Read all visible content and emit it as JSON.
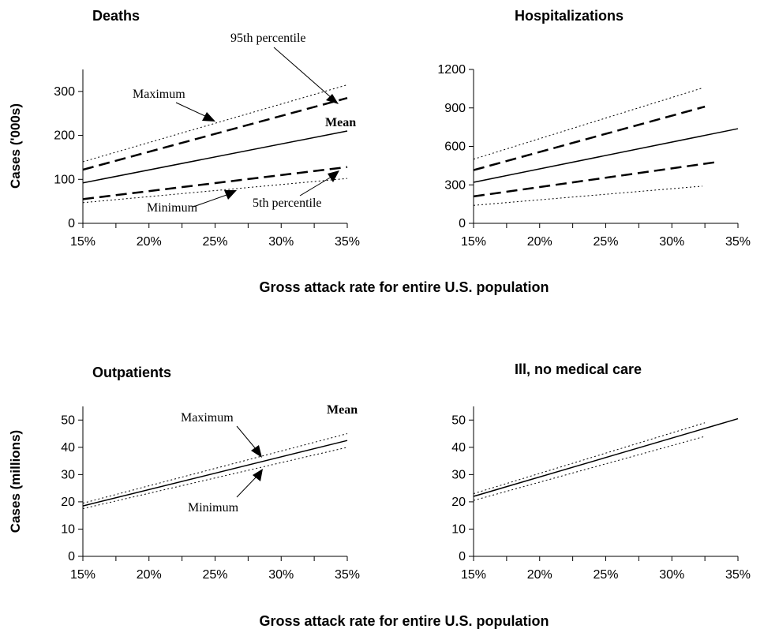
{
  "chart_data": [
    {
      "type": "line",
      "title": "Deaths",
      "ylabel": "Cases ('000s)",
      "xticks": [
        "15%",
        "20%",
        "25%",
        "30%",
        "35%"
      ],
      "xlim": [
        15,
        35
      ],
      "ylim": [
        0,
        350
      ],
      "yticks": [
        0,
        100,
        200,
        300
      ],
      "series": [
        {
          "name": "Maximum",
          "style": "dotted",
          "x": [
            15,
            35
          ],
          "y": [
            140,
            315
          ]
        },
        {
          "name": "95th percentile",
          "style": "dashed",
          "x": [
            15,
            35
          ],
          "y": [
            122,
            285
          ]
        },
        {
          "name": "Mean",
          "style": "solid",
          "x": [
            15,
            35
          ],
          "y": [
            92,
            210
          ]
        },
        {
          "name": "5th percentile",
          "style": "dashed",
          "x": [
            15,
            35
          ],
          "y": [
            55,
            128
          ]
        },
        {
          "name": "Minimum",
          "style": "dotted",
          "x": [
            15,
            35
          ],
          "y": [
            47,
            102
          ]
        }
      ],
      "annotations": [
        {
          "text": "95th percentile",
          "bold": false
        },
        {
          "text": "Maximum",
          "bold": false
        },
        {
          "text": "Mean",
          "bold": true
        },
        {
          "text": "Minimum",
          "bold": false
        },
        {
          "text": "5th percentile",
          "bold": false
        }
      ]
    },
    {
      "type": "line",
      "title": "Hospitalizations",
      "ylabel": "",
      "xticks": [
        "15%",
        "20%",
        "25%",
        "30%",
        "35%"
      ],
      "xlim": [
        15,
        35
      ],
      "ylim": [
        0,
        1200
      ],
      "yticks": [
        0,
        300,
        600,
        900,
        1200
      ],
      "series": [
        {
          "style": "dotted",
          "x": [
            15,
            32.3
          ],
          "y": [
            500,
            1055
          ]
        },
        {
          "style": "dashed",
          "x": [
            15,
            32.5
          ],
          "y": [
            415,
            910
          ]
        },
        {
          "style": "solid",
          "x": [
            15,
            35
          ],
          "y": [
            320,
            738
          ]
        },
        {
          "style": "dashed",
          "x": [
            15,
            33.2
          ],
          "y": [
            210,
            475
          ]
        },
        {
          "style": "dotted",
          "x": [
            15,
            32.3
          ],
          "y": [
            140,
            290
          ]
        }
      ],
      "annotations": []
    },
    {
      "type": "line",
      "title": "Outpatients",
      "ylabel": "Cases (millions)",
      "xticks": [
        "15%",
        "20%",
        "25%",
        "30%",
        "35%"
      ],
      "xlim": [
        15,
        35
      ],
      "ylim": [
        0,
        55
      ],
      "yticks": [
        0,
        10,
        20,
        30,
        40,
        50
      ],
      "series": [
        {
          "name": "Maximum",
          "style": "dotted",
          "x": [
            15,
            35
          ],
          "y": [
            19.5,
            45
          ]
        },
        {
          "name": "Mean",
          "style": "solid",
          "x": [
            15,
            35
          ],
          "y": [
            18.5,
            42.5
          ]
        },
        {
          "name": "Minimum",
          "style": "dotted",
          "x": [
            15,
            35
          ],
          "y": [
            17.5,
            40
          ]
        }
      ],
      "annotations": [
        {
          "text": "Maximum",
          "bold": false
        },
        {
          "text": "Mean",
          "bold": true
        },
        {
          "text": "Minimum",
          "bold": false
        }
      ]
    },
    {
      "type": "line",
      "title": "Ill, no medical care",
      "ylabel": "",
      "xticks": [
        "15%",
        "20%",
        "25%",
        "30%",
        "35%"
      ],
      "xlim": [
        15,
        35
      ],
      "ylim": [
        0,
        55
      ],
      "yticks": [
        0,
        10,
        20,
        30,
        40,
        50
      ],
      "series": [
        {
          "style": "dotted",
          "x": [
            15,
            32.5
          ],
          "y": [
            23,
            49
          ]
        },
        {
          "style": "solid",
          "x": [
            15,
            35
          ],
          "y": [
            22,
            50.5
          ]
        },
        {
          "style": "dotted",
          "x": [
            15,
            32.5
          ],
          "y": [
            20.5,
            44
          ]
        }
      ],
      "annotations": []
    }
  ],
  "shared_xlabels": [
    "Gross attack rate for entire U.S. population",
    "Gross attack rate for entire U.S. population"
  ]
}
